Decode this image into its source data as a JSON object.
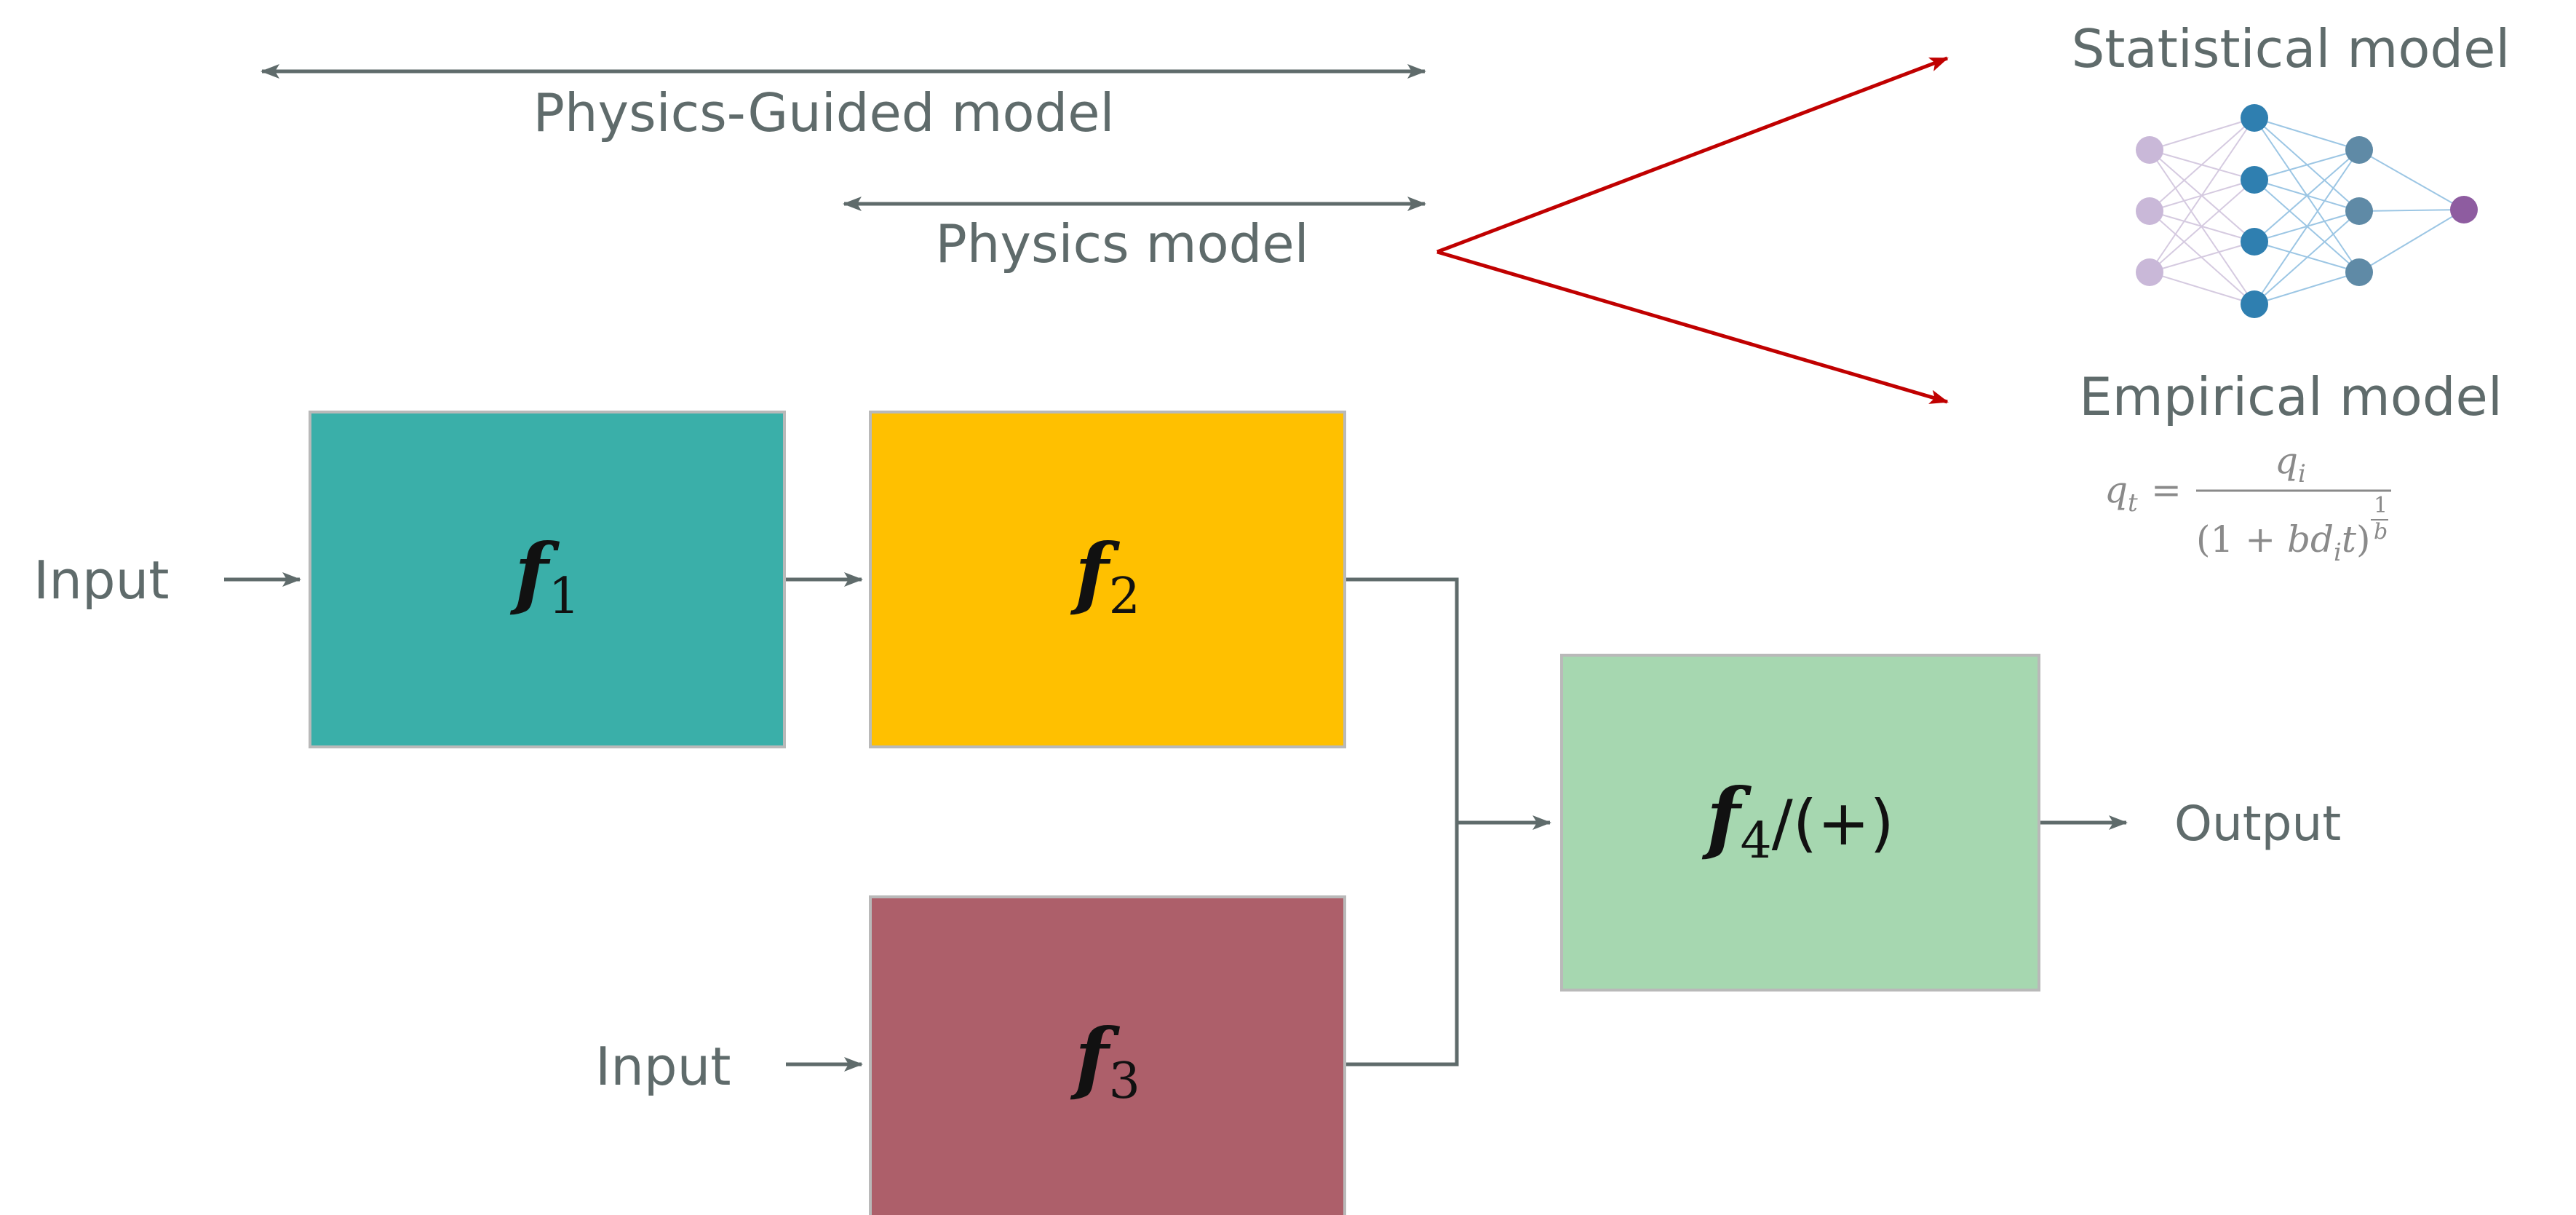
{
  "labels": {
    "physics_guided_model": "Physics-Guided model",
    "physics_model": "Physics model",
    "statistical_model": "Statistical model",
    "empirical_model": "Empirical model",
    "input_top": "Input",
    "input_bottom": "Input",
    "output": "Output"
  },
  "blocks": {
    "f1": {
      "symbol": "f",
      "subscript": "1",
      "suffix": ""
    },
    "f2": {
      "symbol": "f",
      "subscript": "2",
      "suffix": ""
    },
    "f3": {
      "symbol": "f",
      "subscript": "3",
      "suffix": ""
    },
    "f4": {
      "symbol": "f",
      "subscript": "4",
      "suffix": "/(+)"
    }
  },
  "equation": {
    "lhs": "q",
    "lhs_sub": "t",
    "equals": "=",
    "num": "q",
    "num_sub": "i",
    "den_open": "(1 + ",
    "den_var": "bd",
    "den_sub": "i",
    "den_t": "t",
    "den_close": ")",
    "exp_num": "1",
    "exp_den": "b"
  },
  "colors": {
    "f1": "#3aafa9",
    "f2": "#ffc000",
    "f3": "#ad5f6a",
    "f4": "#a6d7b0",
    "arrow_red": "#c00000",
    "arrow_gray": "#5f6b6b",
    "nn_input": "#c9b8d8",
    "nn_hidden1": "#2f7fb0",
    "nn_hidden2": "#5f8aa6",
    "nn_output": "#8e5ca0"
  },
  "icons": {
    "neural_network": "neural-network-icon"
  }
}
